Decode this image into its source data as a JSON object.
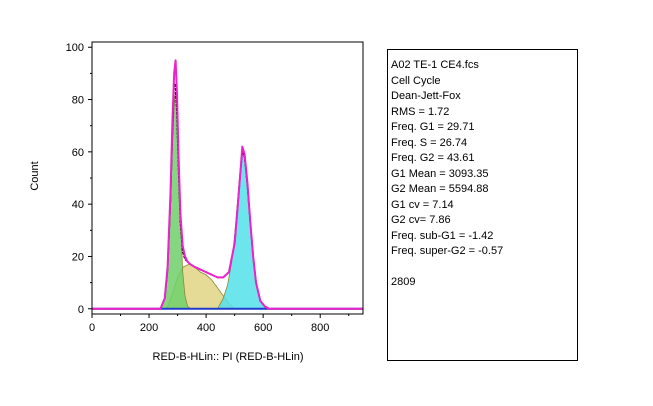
{
  "chart_data": {
    "type": "area",
    "title": "",
    "xlabel": "RED-B-HLin:: PI (RED-B-HLin)",
    "ylabel": "Count",
    "xlim": [
      0,
      950
    ],
    "ylim": [
      -2,
      102
    ],
    "xticks": [
      "0",
      "200",
      "400",
      "600",
      "800"
    ],
    "yticks": [
      "0",
      "20",
      "40",
      "60",
      "80",
      "100"
    ],
    "grid": false,
    "histogram_peak_positions": {
      "g1": 292,
      "g2": 527
    },
    "series": [
      {
        "name": "G1 (green)",
        "color": "#6fd06a",
        "x": [
          240,
          255,
          265,
          275,
          282,
          288,
          293,
          298,
          303,
          310,
          318,
          326,
          335,
          345
        ],
        "y": [
          0,
          4,
          14,
          38,
          62,
          78,
          83,
          78,
          62,
          35,
          14,
          5,
          1,
          0
        ]
      },
      {
        "name": "S (yellow)",
        "color": "#e2d485",
        "x": [
          262,
          280,
          300,
          320,
          340,
          360,
          380,
          400,
          420,
          440,
          460,
          480,
          490,
          500
        ],
        "y": [
          0,
          5,
          12,
          16,
          17,
          16,
          14,
          13,
          11,
          8,
          5,
          2,
          1,
          0
        ]
      },
      {
        "name": "G2 (cyan)",
        "color": "#54e0ea",
        "x": [
          440,
          460,
          475,
          490,
          500,
          510,
          520,
          527,
          535,
          545,
          555,
          565,
          575,
          590,
          605,
          620
        ],
        "y": [
          0,
          4,
          9,
          18,
          28,
          41,
          54,
          60,
          58,
          48,
          33,
          20,
          10,
          3,
          1,
          0
        ]
      },
      {
        "name": "Histogram (black)",
        "color": "#000000",
        "x": [
          0,
          240,
          255,
          265,
          275,
          282,
          288,
          293,
          298,
          303,
          310,
          318,
          326,
          335,
          345,
          360,
          380,
          400,
          420,
          440,
          460,
          480,
          500,
          510,
          520,
          527,
          535,
          545,
          555,
          565,
          575,
          590,
          605,
          620,
          950
        ],
        "y": [
          0,
          0,
          4,
          15,
          42,
          68,
          86,
          86,
          74,
          55,
          33,
          22,
          19,
          18,
          17,
          16,
          15,
          14,
          13,
          12,
          12,
          14,
          25,
          38,
          52,
          60,
          58,
          47,
          33,
          20,
          10,
          3,
          1,
          0,
          0
        ]
      },
      {
        "name": "Fit (magenta)",
        "color": "#ee22cc",
        "x": [
          0,
          240,
          255,
          265,
          275,
          282,
          288,
          293,
          298,
          303,
          310,
          318,
          326,
          335,
          345,
          360,
          380,
          400,
          420,
          440,
          460,
          480,
          500,
          510,
          520,
          527,
          535,
          545,
          555,
          565,
          575,
          590,
          605,
          620,
          950
        ],
        "y": [
          0,
          0,
          4,
          16,
          44,
          72,
          90,
          95,
          82,
          60,
          36,
          24,
          20,
          18,
          17,
          16,
          15,
          14,
          13,
          12,
          12,
          14,
          25,
          38,
          52,
          62,
          59,
          48,
          33,
          20,
          10,
          3,
          1,
          0,
          0
        ]
      },
      {
        "name": "Baseline fit (blue)",
        "color": "#1f3dcc",
        "x": [
          0,
          950
        ],
        "y": [
          0,
          0
        ]
      }
    ]
  },
  "stats_panel": {
    "lines": [
      "A02 TE-1 CE4.fcs",
      "Cell Cycle",
      "Dean-Jett-Fox",
      "RMS = 1.72",
      "Freq. G1 = 29.71",
      "Freq. S = 26.74",
      "Freq. G2 = 43.61",
      "G1 Mean = 3093.35",
      "G2 Mean = 5594.88",
      "G1 cv = 7.14",
      "G2 cv= 7.86",
      "Freq. sub-G1 = -1.42",
      "Freq. super-G2 = -0.57"
    ],
    "event_count": "2809"
  }
}
